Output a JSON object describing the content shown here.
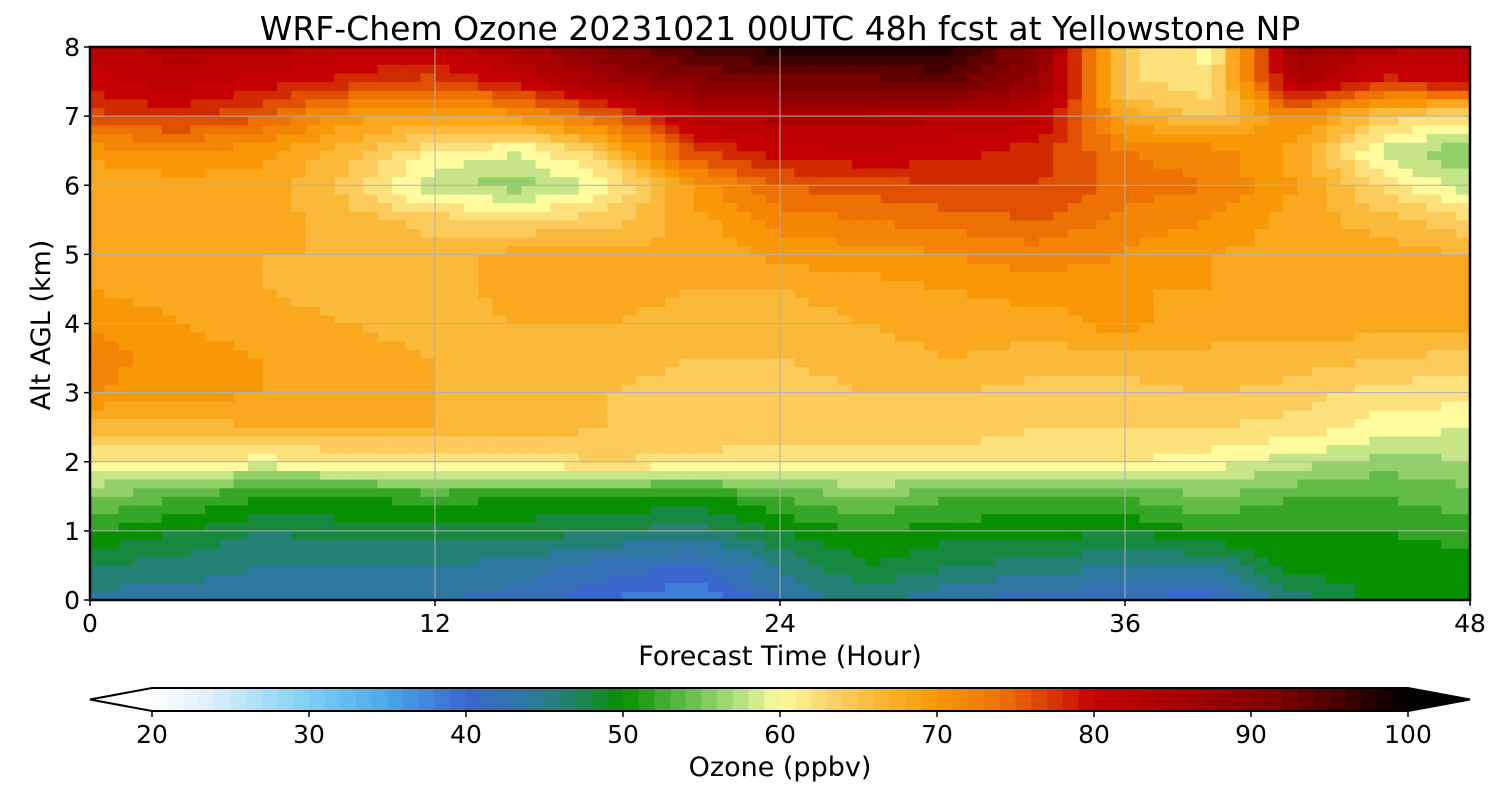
{
  "chart_data": {
    "type": "heatmap",
    "title": "WRF-Chem Ozone  20231021 00UTC 48h fcst at Yellowstone NP",
    "xlabel": "Forecast Time (Hour)",
    "ylabel": "Alt AGL (km)",
    "xlim": [
      0,
      48
    ],
    "ylim": [
      0,
      8
    ],
    "x_ticks": [
      0,
      12,
      24,
      36,
      48
    ],
    "y_ticks": [
      0,
      1,
      2,
      3,
      4,
      5,
      6,
      7,
      8
    ],
    "grid": true,
    "x": [
      0,
      3,
      6,
      9,
      12,
      15,
      18,
      21,
      24,
      27,
      30,
      33,
      36,
      39,
      42,
      45,
      48
    ],
    "y": [
      0,
      0.5,
      1,
      1.5,
      2,
      2.5,
      3,
      3.5,
      4,
      4.5,
      5,
      5.5,
      6,
      6.5,
      7,
      7.5,
      8
    ],
    "z_rows_bottom_to_top": [
      [
        44,
        44,
        43,
        43,
        43,
        42,
        39,
        37,
        43,
        46,
        43,
        42,
        41,
        40,
        46,
        50,
        50
      ],
      [
        47,
        46,
        45,
        45,
        45,
        44,
        42,
        41,
        45,
        49,
        47,
        46,
        45,
        45,
        50,
        50,
        50
      ],
      [
        51,
        49,
        47,
        48,
        48,
        48,
        47,
        46,
        49,
        51,
        50,
        50,
        49,
        51,
        51,
        51,
        52
      ],
      [
        55,
        53,
        51,
        51,
        52,
        51,
        51,
        50,
        53,
        55,
        53,
        52,
        53,
        55,
        53,
        53,
        54
      ],
      [
        61,
        61,
        60,
        61,
        61,
        62,
        63,
        62,
        62,
        61,
        62,
        62,
        61,
        60,
        58,
        56,
        57
      ],
      [
        66,
        66,
        67,
        67,
        67,
        66,
        65,
        65,
        64,
        65,
        64,
        63,
        63,
        63,
        62,
        60,
        59
      ],
      [
        71,
        70,
        69,
        68,
        67,
        66,
        65,
        64,
        64,
        65,
        65,
        64,
        64,
        65,
        64,
        62,
        62
      ],
      [
        72,
        70,
        69,
        68,
        67,
        66,
        66,
        65,
        65,
        66,
        67,
        66,
        66,
        67,
        66,
        65,
        64
      ],
      [
        71,
        69,
        68,
        67,
        66,
        67,
        67,
        66,
        66,
        67,
        68,
        68,
        70,
        67,
        68,
        68,
        68
      ],
      [
        69,
        68,
        67,
        66,
        66,
        68,
        68,
        67,
        67,
        68,
        69,
        70,
        69,
        69,
        68,
        68,
        69
      ],
      [
        68,
        68,
        67,
        67,
        66,
        68,
        68,
        67,
        70,
        70,
        71,
        72,
        71,
        69,
        68,
        68,
        67
      ],
      [
        67,
        68,
        68,
        66,
        64,
        63,
        64,
        68,
        72,
        73,
        74,
        75,
        72,
        71,
        68,
        66,
        63
      ],
      [
        67,
        68,
        68,
        64,
        57,
        56,
        60,
        70,
        75,
        76,
        77,
        77,
        74,
        73,
        69,
        62,
        58
      ],
      [
        70,
        71,
        70,
        66,
        61,
        59,
        65,
        77,
        80,
        81,
        80,
        78,
        73,
        72,
        68,
        58,
        55
      ],
      [
        76,
        78,
        75,
        70,
        68,
        70,
        75,
        82,
        84,
        84,
        83,
        82,
        68,
        64,
        72,
        64,
        62
      ],
      [
        80,
        82,
        80,
        78,
        76,
        80,
        86,
        90,
        92,
        92,
        94,
        88,
        63,
        62,
        84,
        78,
        80
      ],
      [
        82,
        84,
        84,
        82,
        82,
        86,
        92,
        96,
        98,
        98,
        98,
        90,
        64,
        60,
        88,
        84,
        82
      ]
    ],
    "colorbar": {
      "label": "Ozone  (ppbv)",
      "min": 20,
      "max": 100,
      "extend": "both",
      "ticks": [
        "20",
        "30",
        "40",
        "50",
        "60",
        "70",
        "80",
        "90",
        "100"
      ]
    },
    "colors": {
      "stops": [
        [
          20,
          "#ffffff"
        ],
        [
          24,
          "#d8eefb"
        ],
        [
          30,
          "#7ccff5"
        ],
        [
          35,
          "#4aa8ea"
        ],
        [
          40,
          "#3a66cc"
        ],
        [
          44,
          "#2d77a0"
        ],
        [
          47,
          "#1f8460"
        ],
        [
          50,
          "#079000"
        ],
        [
          53,
          "#4bb038"
        ],
        [
          57,
          "#a9da7c"
        ],
        [
          60,
          "#fffca0"
        ],
        [
          63,
          "#fcd46c"
        ],
        [
          67,
          "#fbb028"
        ],
        [
          70,
          "#f99806"
        ],
        [
          74,
          "#ee7203"
        ],
        [
          77,
          "#d93f00"
        ],
        [
          80,
          "#c50000"
        ],
        [
          86,
          "#a40000"
        ],
        [
          92,
          "#7a0000"
        ],
        [
          96,
          "#420000"
        ],
        [
          100,
          "#000000"
        ]
      ],
      "grid": "#b0b0b0"
    }
  }
}
